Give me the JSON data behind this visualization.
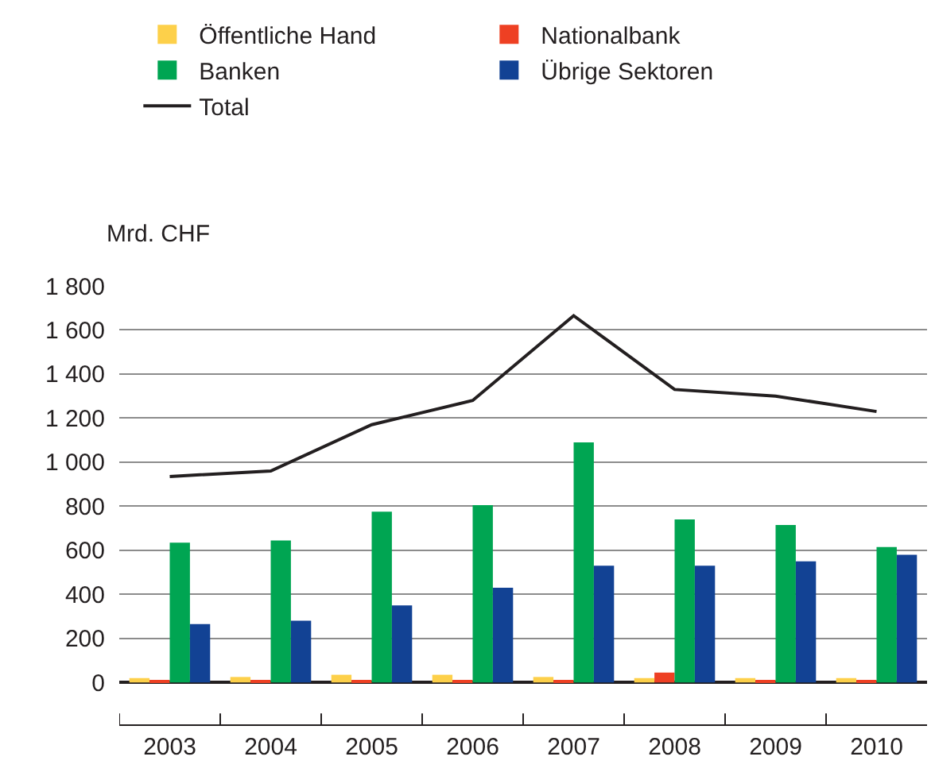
{
  "chart_data": {
    "type": "bar",
    "ylabel": "Mrd. CHF",
    "categories": [
      "2003",
      "2004",
      "2005",
      "2006",
      "2007",
      "2008",
      "2009",
      "2010"
    ],
    "series": [
      {
        "name": "Öffentliche Hand",
        "color": "#fdd04a",
        "values": [
          20,
          25,
          35,
          35,
          25,
          20,
          20,
          20
        ]
      },
      {
        "name": "Nationalbank",
        "color": "#ee4023",
        "values": [
          8,
          8,
          8,
          8,
          10,
          45,
          10,
          10
        ]
      },
      {
        "name": "Banken",
        "color": "#00a552",
        "values": [
          635,
          645,
          775,
          805,
          1090,
          740,
          715,
          615
        ]
      },
      {
        "name": "Übrige Sektoren",
        "color": "#124294",
        "values": [
          265,
          280,
          350,
          430,
          530,
          530,
          550,
          580
        ]
      },
      {
        "name": "Total",
        "type": "line",
        "color": "#231f20",
        "values": [
          935,
          960,
          1170,
          1280,
          1665,
          1330,
          1300,
          1230
        ]
      }
    ],
    "ylim": [
      -190,
      1800
    ],
    "yticks": [
      {
        "value": 0,
        "label": "0"
      },
      {
        "value": 200,
        "label": "200"
      },
      {
        "value": 400,
        "label": "400"
      },
      {
        "value": 600,
        "label": "600"
      },
      {
        "value": 800,
        "label": "800"
      },
      {
        "value": 1000,
        "label": "1 000"
      },
      {
        "value": 1200,
        "label": "1 200"
      },
      {
        "value": 1400,
        "label": "1 400"
      },
      {
        "value": 1600,
        "label": "1 600"
      },
      {
        "value": 1800,
        "label": "1 800"
      }
    ],
    "grid": "y",
    "legend": "top"
  }
}
